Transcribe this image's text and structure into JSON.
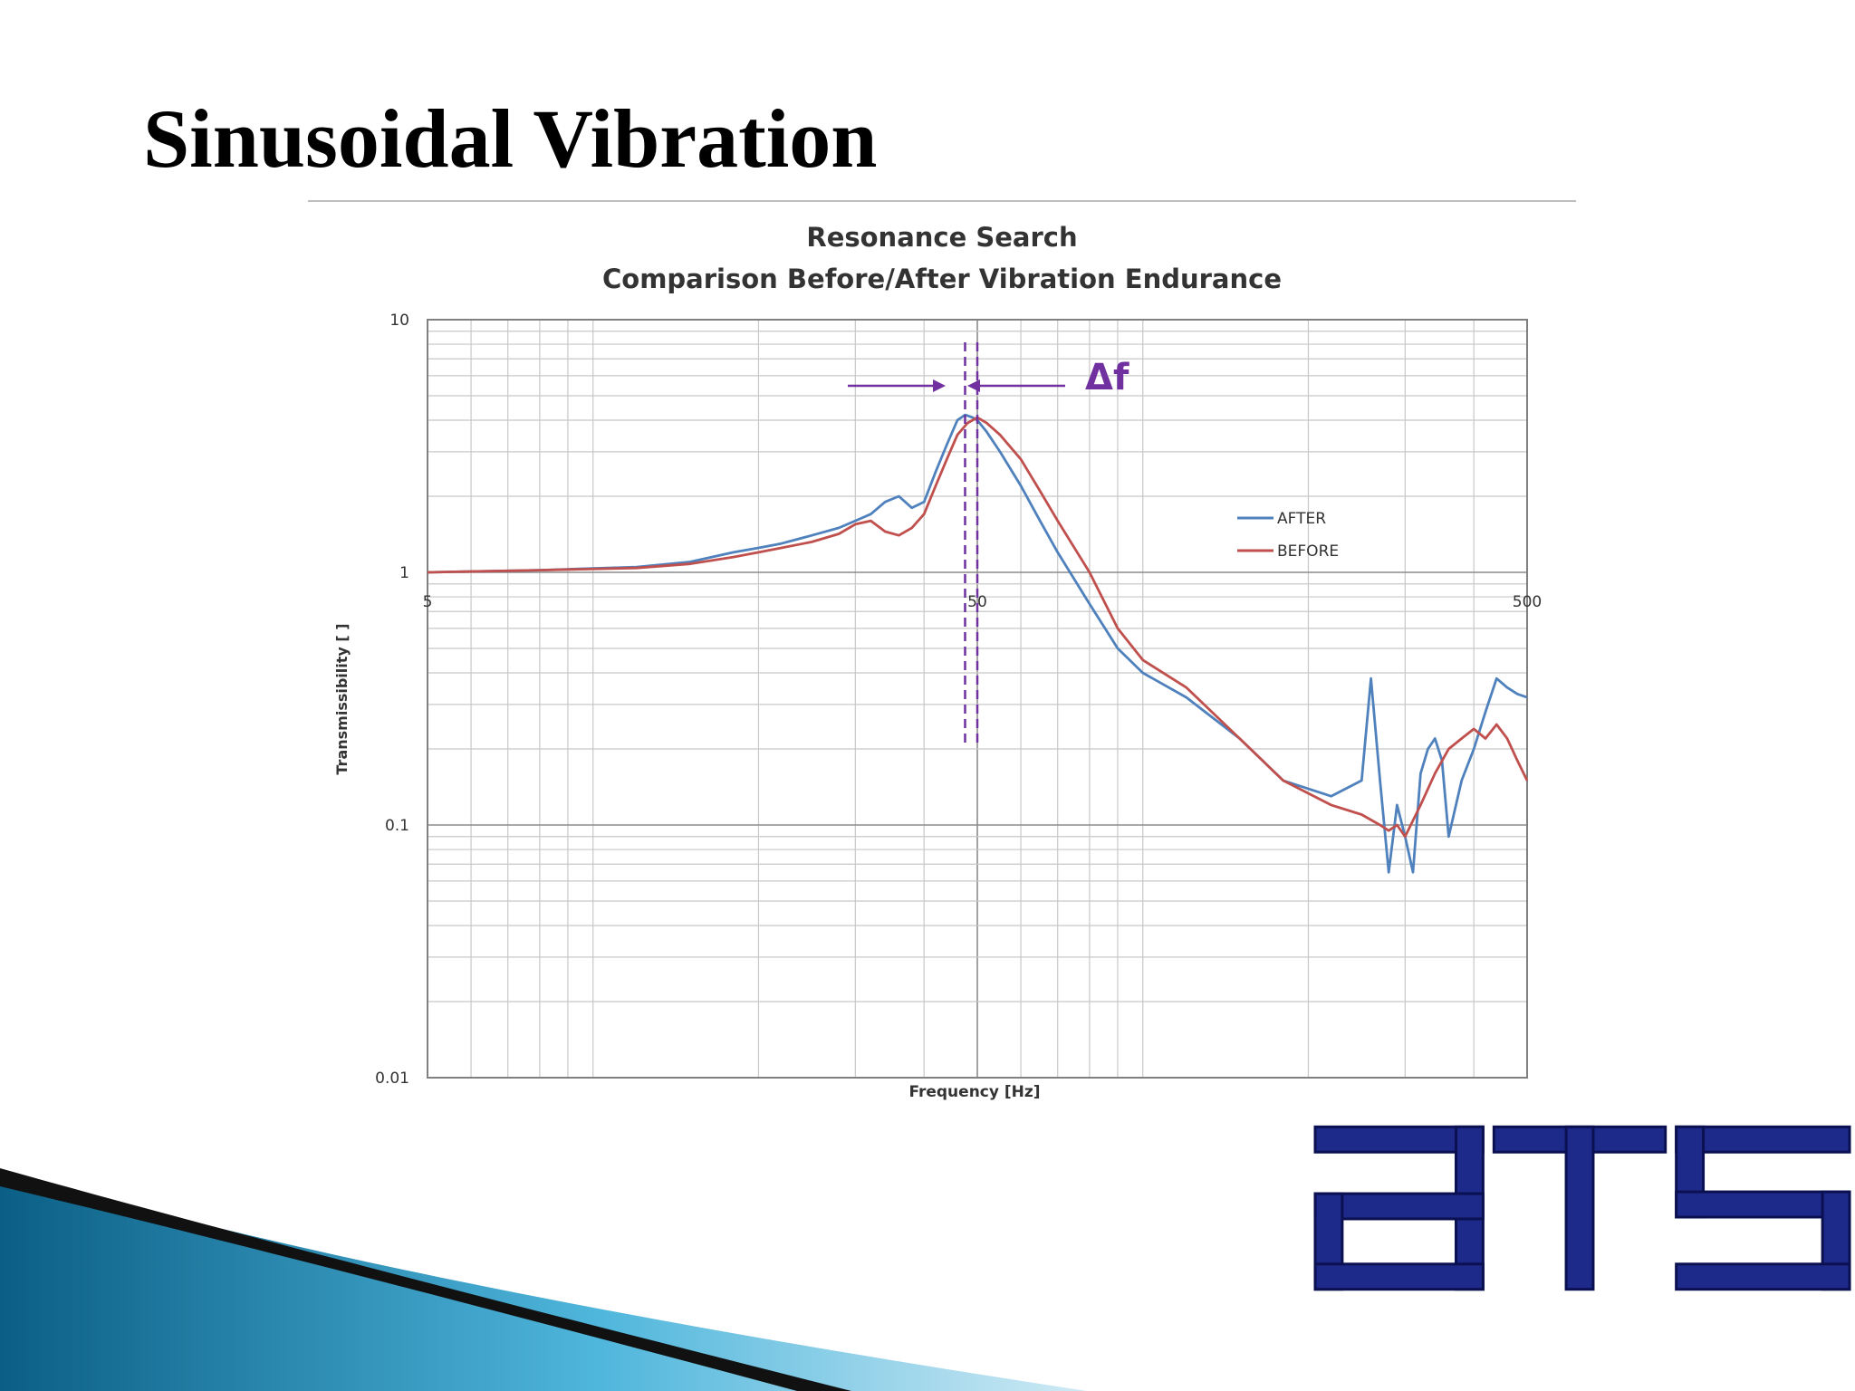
{
  "slide": {
    "title": "Sinusoidal Vibration"
  },
  "logo": {
    "text": "ATS",
    "color": "#1e2a8a"
  },
  "chart_data": {
    "type": "line",
    "title": "Resonance Search",
    "subtitle": "Comparison Before/After Vibration Endurance",
    "xlabel": "Frequency [Hz]",
    "ylabel": "Transmissibility [ ]",
    "xscale": "log",
    "yscale": "log",
    "xlim": [
      5,
      500
    ],
    "ylim": [
      0.01,
      10
    ],
    "xticks": [
      5,
      50,
      500
    ],
    "xtick_labels": [
      "5",
      "50",
      "500"
    ],
    "yticks": [
      0.01,
      0.1,
      1,
      10
    ],
    "ytick_labels": [
      "0.01",
      "0.1",
      "1",
      "10"
    ],
    "grid": true,
    "legend_position": "right",
    "annotation": {
      "text": "Δf",
      "color": "#7030a0",
      "dashed_lines_x": [
        47.5,
        50
      ]
    },
    "series": [
      {
        "name": "AFTER",
        "color": "#4f81bd",
        "x": [
          5,
          8,
          12,
          15,
          18,
          20,
          22,
          25,
          28,
          30,
          32,
          34,
          36,
          38,
          40,
          42,
          44,
          46,
          47.5,
          49,
          50,
          52,
          55,
          60,
          65,
          70,
          80,
          90,
          100,
          120,
          150,
          180,
          220,
          250,
          260,
          270,
          280,
          290,
          300,
          310,
          320,
          330,
          340,
          350,
          360,
          380,
          400,
          420,
          440,
          460,
          480,
          500
        ],
        "values": [
          1.0,
          1.02,
          1.05,
          1.1,
          1.2,
          1.25,
          1.3,
          1.4,
          1.5,
          1.6,
          1.7,
          1.9,
          2.0,
          1.8,
          1.9,
          2.5,
          3.2,
          4.0,
          4.2,
          4.1,
          4.0,
          3.6,
          3.0,
          2.2,
          1.6,
          1.2,
          0.75,
          0.5,
          0.4,
          0.32,
          0.22,
          0.15,
          0.13,
          0.15,
          0.38,
          0.15,
          0.065,
          0.12,
          0.09,
          0.065,
          0.16,
          0.2,
          0.22,
          0.18,
          0.09,
          0.15,
          0.2,
          0.28,
          0.38,
          0.35,
          0.33,
          0.32
        ]
      },
      {
        "name": "BEFORE",
        "color": "#c0504d",
        "x": [
          5,
          8,
          12,
          15,
          18,
          20,
          22,
          25,
          28,
          30,
          32,
          34,
          36,
          38,
          40,
          42,
          44,
          46,
          48,
          50,
          52,
          55,
          60,
          65,
          70,
          80,
          90,
          100,
          120,
          150,
          180,
          220,
          250,
          270,
          280,
          290,
          300,
          320,
          340,
          360,
          380,
          400,
          420,
          440,
          460,
          480,
          500
        ],
        "values": [
          1.0,
          1.02,
          1.04,
          1.08,
          1.15,
          1.2,
          1.25,
          1.32,
          1.42,
          1.55,
          1.6,
          1.45,
          1.4,
          1.5,
          1.7,
          2.2,
          2.8,
          3.5,
          3.9,
          4.1,
          3.9,
          3.5,
          2.8,
          2.1,
          1.6,
          1.0,
          0.6,
          0.45,
          0.35,
          0.22,
          0.15,
          0.12,
          0.11,
          0.1,
          0.095,
          0.1,
          0.09,
          0.12,
          0.16,
          0.2,
          0.22,
          0.24,
          0.22,
          0.25,
          0.22,
          0.18,
          0.15
        ]
      }
    ]
  }
}
